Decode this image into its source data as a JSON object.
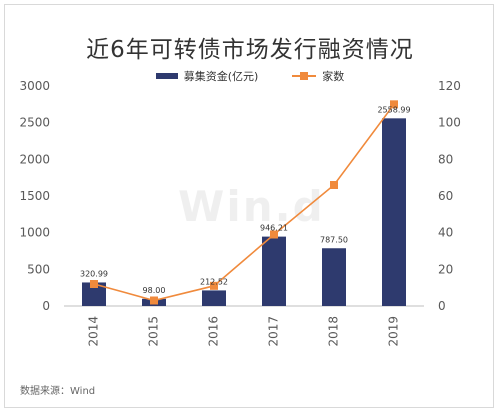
{
  "title": "近6年可转债市场发行融资情况",
  "source": "数据来源：Wind",
  "watermark": "Win.d",
  "colors": {
    "bar": "#2e3a6e",
    "line": "#f08a3c",
    "axis": "#bfbfbf",
    "text": "#595959"
  },
  "chart_data": {
    "type": "bar+line",
    "categories": [
      "2014",
      "2015",
      "2016",
      "2017",
      "2018",
      "2019"
    ],
    "series": [
      {
        "name": "募集资金(亿元)",
        "type": "bar",
        "axis": "left",
        "values": [
          320.99,
          98.0,
          212.52,
          946.21,
          787.5,
          2558.99
        ],
        "labels": [
          "320.99",
          "98.00",
          "212.52",
          "946.21",
          "787.50",
          "2558.99"
        ]
      },
      {
        "name": "家数",
        "type": "line",
        "axis": "right",
        "values": [
          12,
          3,
          11,
          39,
          66,
          110
        ]
      }
    ],
    "y_left": {
      "range": [
        0,
        3000
      ],
      "ticks": [
        "0",
        "500",
        "1000",
        "1500",
        "2000",
        "2500",
        "3000"
      ]
    },
    "y_right": {
      "range": [
        0,
        120
      ],
      "ticks": [
        "0",
        "20",
        "40",
        "60",
        "80",
        "100",
        "120"
      ]
    },
    "legend_position": "top-center",
    "grid": false
  }
}
